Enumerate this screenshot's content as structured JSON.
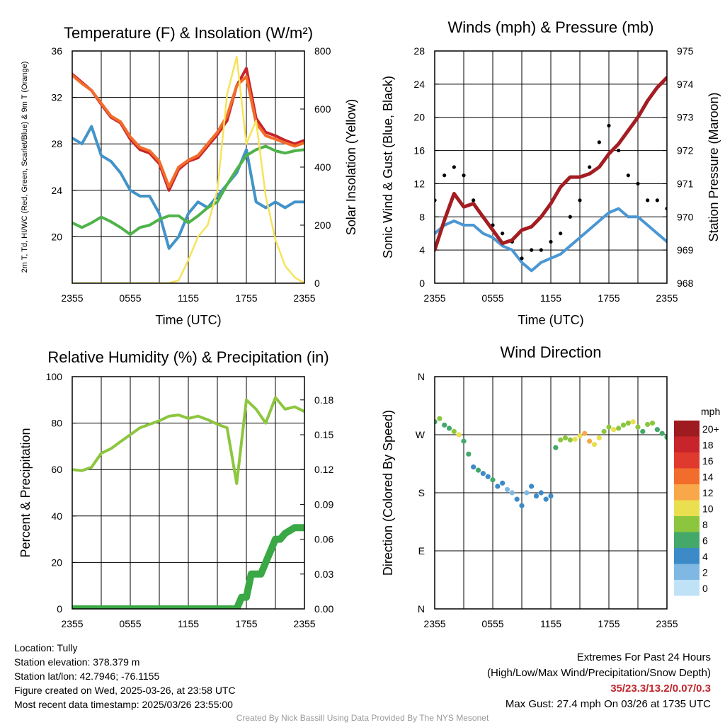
{
  "chart_data": [
    {
      "id": "temperature",
      "type": "line",
      "title": "Temperature (F) & Insolation (W/m²)",
      "xlabel": "Time (UTC)",
      "ylabel": "2m T, Td, HI/WC (Red, Green, Scarlet/Blue) & 9m T (Orange)",
      "ylabel2": "Solar Insolation (Yellow)",
      "x_ticks": [
        "2355",
        "0555",
        "1155",
        "1755",
        "2355"
      ],
      "ylim": [
        16,
        36
      ],
      "y_ticks": [
        20,
        24,
        28,
        32,
        36
      ],
      "ylim2": [
        0,
        800
      ],
      "y2_ticks": [
        0,
        200,
        400,
        600,
        800
      ],
      "grid": true,
      "series": [
        {
          "name": "2m T",
          "color": "#c8242b",
          "axis": "left",
          "x": [
            0,
            1,
            2,
            3,
            4,
            5,
            6,
            7,
            8,
            9,
            10,
            11,
            12,
            13,
            14,
            15,
            16,
            17,
            18,
            19,
            20,
            21,
            22,
            23,
            24
          ],
          "values": [
            34,
            33.3,
            32.6,
            31.4,
            30.3,
            29.8,
            28.4,
            27.5,
            27.2,
            26.3,
            24,
            25.8,
            26.5,
            26.8,
            27.8,
            28.8,
            30,
            33,
            34.5,
            30.2,
            29,
            28.7,
            28.3,
            28,
            28.3
          ]
        },
        {
          "name": "9m T",
          "color": "#f26c2b",
          "axis": "left",
          "x": [
            0,
            1,
            2,
            3,
            4,
            5,
            6,
            7,
            8,
            9,
            10,
            11,
            12,
            13,
            14,
            15,
            16,
            17,
            18,
            19,
            20,
            21,
            22,
            23,
            24
          ],
          "values": [
            33.9,
            33.2,
            32.6,
            31.5,
            30.4,
            29.9,
            28.6,
            27.7,
            27.4,
            26.5,
            24.3,
            26,
            26.6,
            27,
            28,
            29,
            30.4,
            33,
            33.8,
            29.8,
            28.7,
            28.4,
            28.1,
            27.8,
            28.1
          ]
        },
        {
          "name": "HI/WC",
          "color": "#4393c9",
          "axis": "left",
          "x": [
            0,
            1,
            2,
            3,
            4,
            5,
            6,
            7,
            8,
            9,
            10,
            11,
            12,
            13,
            14,
            15,
            16,
            17,
            18,
            19,
            20,
            21,
            22,
            23,
            24
          ],
          "values": [
            28.5,
            28,
            29.5,
            27,
            26.5,
            25.5,
            24,
            23.5,
            23.5,
            22,
            19,
            20,
            22,
            23,
            22.5,
            23.5,
            24.5,
            25.5,
            27.5,
            23,
            22.5,
            23,
            22.5,
            23,
            23
          ]
        },
        {
          "name": "2m Td",
          "color": "#4fb34a",
          "axis": "left",
          "x": [
            0,
            1,
            2,
            3,
            4,
            5,
            6,
            7,
            8,
            9,
            10,
            11,
            12,
            13,
            14,
            15,
            16,
            17,
            18,
            19,
            20,
            21,
            22,
            23,
            24
          ],
          "values": [
            21.2,
            20.8,
            21.2,
            21.7,
            21.3,
            20.8,
            20.2,
            20.8,
            21,
            21.5,
            21.8,
            21.8,
            21.2,
            21.8,
            22.5,
            23,
            24.5,
            25.8,
            27,
            27.5,
            27.8,
            27.4,
            27.2,
            27.4,
            27.5
          ]
        },
        {
          "name": "Solar Insolation",
          "color": "#f7e35a",
          "axis": "right",
          "x": [
            0,
            1,
            2,
            3,
            4,
            5,
            6,
            7,
            8,
            9,
            10,
            11,
            12,
            13,
            14,
            15,
            16,
            17,
            18,
            19,
            20,
            21,
            22,
            23,
            24
          ],
          "values": [
            0,
            0,
            0,
            0,
            0,
            0,
            0,
            0,
            0,
            0,
            0,
            10,
            80,
            160,
            200,
            320,
            650,
            780,
            480,
            560,
            300,
            150,
            60,
            20,
            0
          ]
        }
      ]
    },
    {
      "id": "winds",
      "type": "line",
      "title": "Winds (mph) & Pressure (mb)",
      "xlabel": "Time (UTC)",
      "ylabel": "Sonic Wind & Gust (Blue, Black)",
      "ylabel2": "Station Pressure (Maroon)",
      "x_ticks": [
        "2355",
        "0555",
        "1155",
        "1755",
        "2355"
      ],
      "ylim": [
        0,
        28
      ],
      "y_ticks": [
        0,
        4,
        8,
        12,
        16,
        20,
        24,
        28
      ],
      "ylim2": [
        968,
        975
      ],
      "y2_ticks": [
        968,
        969,
        970,
        971,
        972,
        973,
        974,
        975
      ],
      "grid": true,
      "series": [
        {
          "name": "Sonic Wind",
          "color": "#4a97d4",
          "axis": "left",
          "x": [
            0,
            1,
            2,
            3,
            4,
            5,
            6,
            7,
            8,
            9,
            10,
            11,
            12,
            13,
            14,
            15,
            16,
            17,
            18,
            19,
            20,
            21,
            22,
            23,
            24
          ],
          "values": [
            6,
            7,
            7.5,
            7,
            7,
            6,
            5.5,
            4.5,
            4,
            2.5,
            1.5,
            2.5,
            3,
            3.5,
            4.5,
            5.5,
            6.5,
            7.5,
            8.5,
            9,
            8,
            8,
            7,
            6,
            5
          ]
        },
        {
          "name": "Gust",
          "color": "#000000",
          "axis": "left",
          "x": [
            0,
            1,
            2,
            3,
            4,
            5,
            6,
            7,
            8,
            9,
            10,
            11,
            12,
            13,
            14,
            15,
            16,
            17,
            18,
            19,
            20,
            21,
            22,
            23,
            24
          ],
          "values": [
            10,
            13,
            14,
            13,
            10,
            8,
            7,
            6,
            5,
            3,
            4,
            4,
            5,
            6,
            8,
            10,
            14,
            17,
            19,
            16,
            13,
            12,
            10,
            10,
            9
          ]
        },
        {
          "name": "Station Pressure",
          "color": "#a31d22",
          "axis": "right",
          "x": [
            0,
            1,
            2,
            3,
            4,
            5,
            6,
            7,
            8,
            9,
            10,
            11,
            12,
            13,
            14,
            15,
            16,
            17,
            18,
            19,
            20,
            21,
            22,
            23,
            24
          ],
          "values": [
            969,
            969.9,
            970.7,
            970.3,
            970.4,
            970,
            969.6,
            969.2,
            969.3,
            969.6,
            969.7,
            970,
            970.4,
            970.9,
            971.2,
            971.2,
            971.3,
            971.5,
            971.9,
            972.2,
            972.6,
            973,
            973.5,
            973.9,
            974.2
          ]
        }
      ]
    },
    {
      "id": "humidity",
      "type": "line",
      "title": "Relative Humidity (%) & Precipitation (in)",
      "xlabel": "",
      "ylabel": "Percent & Precipitation",
      "x_ticks": [
        "2355",
        "0555",
        "1155",
        "1755",
        "2355"
      ],
      "ylim": [
        0,
        100
      ],
      "y_ticks": [
        0,
        20,
        40,
        60,
        80,
        100
      ],
      "ylim2": [
        0,
        0.2
      ],
      "y2_ticks": [
        "0.00",
        "0.03",
        "0.06",
        "0.09",
        "0.12",
        "0.15",
        "0.18"
      ],
      "grid": true,
      "series": [
        {
          "name": "Relative Humidity",
          "color": "#8dc63f",
          "axis": "left",
          "x": [
            0,
            1,
            2,
            3,
            4,
            5,
            6,
            7,
            8,
            9,
            10,
            11,
            12,
            13,
            14,
            15,
            16,
            17,
            18,
            19,
            20,
            21,
            22,
            23,
            24
          ],
          "values": [
            60,
            59.5,
            61,
            67,
            69,
            72,
            75,
            78,
            79.5,
            81,
            83,
            83.5,
            82,
            83,
            81.5,
            79.5,
            78,
            54,
            90,
            86,
            80,
            91,
            86,
            87,
            85
          ]
        },
        {
          "name": "Precipitation",
          "color": "#3aa845",
          "axis": "right",
          "x": [
            0,
            2,
            4,
            6,
            8,
            10,
            12,
            14,
            16,
            17,
            17.5,
            18,
            18.5,
            19,
            19.5,
            20,
            20.5,
            21,
            21.5,
            22,
            23,
            24
          ],
          "values": [
            0,
            0,
            0,
            0,
            0,
            0,
            0,
            0,
            0,
            0,
            0.01,
            0.01,
            0.03,
            0.03,
            0.03,
            0.04,
            0.05,
            0.06,
            0.06,
            0.065,
            0.07,
            0.07
          ]
        }
      ]
    },
    {
      "id": "wind_direction",
      "type": "scatter",
      "title": "Wind Direction",
      "xlabel": "",
      "ylabel": "Direction (Colored By Speed)",
      "x_ticks": [
        "2355",
        "0555",
        "1155",
        "1755",
        "2355"
      ],
      "ylim": [
        0,
        360
      ],
      "y_ticks": [
        "N",
        "E",
        "S",
        "W",
        "N"
      ],
      "grid": true,
      "legend": {
        "title": "mph",
        "labels": [
          "20+",
          "18",
          "16",
          "14",
          "12",
          "10",
          "8",
          "6",
          "4",
          "2",
          "0"
        ],
        "colors": [
          "#9e1b1f",
          "#c8242b",
          "#e03a2f",
          "#f26c2b",
          "#f8a848",
          "#eadf4e",
          "#8cc63f",
          "#43a86a",
          "#3c8bc8",
          "#7fb9e3",
          "#bfe2f7"
        ]
      },
      "points": {
        "x": [
          0,
          0.5,
          1,
          1.5,
          2,
          2.5,
          3,
          3.5,
          4,
          4.5,
          5,
          5.5,
          6,
          6.5,
          7,
          7.5,
          8,
          8.5,
          9,
          9.5,
          10,
          10.5,
          11,
          11.5,
          12,
          12.5,
          13,
          13.5,
          14,
          14.5,
          15,
          15.5,
          16,
          16.5,
          17,
          17.5,
          18,
          18.5,
          19,
          19.5,
          20,
          20.5,
          21,
          21.5,
          22,
          22.5,
          23,
          23.5,
          24
        ],
        "direction": [
          290,
          295,
          285,
          280,
          275,
          270,
          260,
          240,
          220,
          215,
          210,
          205,
          200,
          190,
          195,
          185,
          180,
          170,
          160,
          180,
          190,
          175,
          180,
          170,
          175,
          250,
          262,
          265,
          262,
          263,
          268,
          272,
          260,
          255,
          265,
          275,
          282,
          278,
          280,
          285,
          288,
          290,
          282,
          275,
          286,
          288,
          278,
          272,
          266
        ],
        "speed": [
          5,
          7,
          5,
          6,
          7,
          9,
          6,
          5,
          4,
          5,
          4,
          4,
          5,
          3,
          3,
          2,
          2,
          3,
          4,
          2,
          3,
          3,
          4,
          3,
          4,
          6,
          7,
          8,
          7,
          9,
          10,
          12,
          11,
          10,
          9,
          8,
          7,
          9,
          8,
          7,
          8,
          9,
          7,
          6,
          7,
          8,
          6,
          6,
          5
        ]
      }
    }
  ],
  "info": {
    "location": "Location: Tully",
    "elevation": "Station elevation: 378.379 m",
    "latlon": "Station lat/lon: 42.7946; -76.1155",
    "created": "Figure created on Wed, 2025-03-26, at 23:58 UTC",
    "recent": "Most recent data timestamp: 2025/03/26 23:55:00"
  },
  "extremes": {
    "heading": "Extremes For Past 24 Hours",
    "subheading": "(High/Low/Max Wind/Precipitation/Snow Depth)",
    "values": "35/23.3/13.2/0.07/0.3",
    "gust": "Max Gust: 27.4 mph On 03/26 at 1735 UTC"
  },
  "credit": "Created By Nick Bassill Using Data Provided By The NYS Mesonet"
}
